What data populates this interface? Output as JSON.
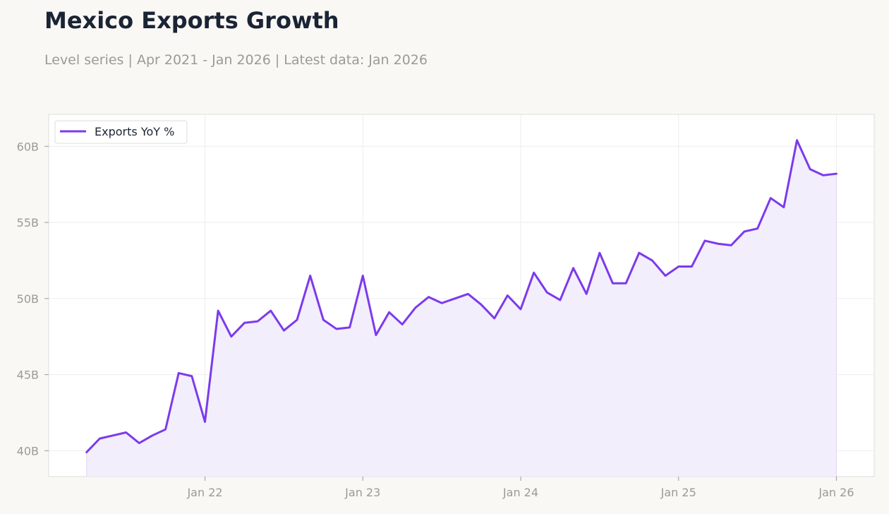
{
  "title": "Mexico Exports Growth",
  "subtitle": "Level series | Apr 2021 - Jan 2026 | Latest data: Jan 2026",
  "chart_data": {
    "type": "area",
    "title": "Mexico Exports Growth",
    "subtitle": "Level series | Apr 2021 - Jan 2026 | Latest data: Jan 2026",
    "xlabel": "",
    "ylabel": "",
    "x_start": "2021-04",
    "x_ticks": [
      "Jan 22",
      "Jan 23",
      "Jan 24",
      "Jan 25",
      "Jan 26"
    ],
    "y_ticks": [
      "40B",
      "45B",
      "50B",
      "55B",
      "60B"
    ],
    "ylim": [
      38.3,
      62.1
    ],
    "grid": true,
    "legend_position": "top-left",
    "colors": {
      "line": "#7c3aed",
      "fill": "#f1ecfb",
      "grid": "#ededed",
      "frame": "#dcdcd8"
    },
    "series": [
      {
        "name": "Exports YoY %",
        "x": [
          "2021-04",
          "2021-05",
          "2021-06",
          "2021-07",
          "2021-08",
          "2021-09",
          "2021-10",
          "2021-11",
          "2021-12",
          "2022-01",
          "2022-02",
          "2022-03",
          "2022-04",
          "2022-05",
          "2022-06",
          "2022-07",
          "2022-08",
          "2022-09",
          "2022-10",
          "2022-11",
          "2022-12",
          "2023-01",
          "2023-02",
          "2023-03",
          "2023-04",
          "2023-05",
          "2023-06",
          "2023-07",
          "2023-08",
          "2023-09",
          "2023-10",
          "2023-11",
          "2023-12",
          "2024-01",
          "2024-02",
          "2024-03",
          "2024-04",
          "2024-05",
          "2024-06",
          "2024-07",
          "2024-08",
          "2024-09",
          "2024-10",
          "2024-11",
          "2024-12",
          "2025-01",
          "2025-02",
          "2025-03",
          "2025-04",
          "2025-05",
          "2025-06",
          "2025-07",
          "2025-08",
          "2025-09",
          "2025-10",
          "2025-11",
          "2025-12",
          "2026-01"
        ],
        "values": [
          39.9,
          40.8,
          41.0,
          41.2,
          40.5,
          41.0,
          41.4,
          45.1,
          44.9,
          41.9,
          49.2,
          47.5,
          48.4,
          48.5,
          49.2,
          47.9,
          48.6,
          51.5,
          48.6,
          48.0,
          48.1,
          51.5,
          47.6,
          49.1,
          48.3,
          49.4,
          50.1,
          49.7,
          50.0,
          50.3,
          49.6,
          48.7,
          50.2,
          49.3,
          51.7,
          50.4,
          49.9,
          52.0,
          50.3,
          53.0,
          51.0,
          51.0,
          53.0,
          52.5,
          51.5,
          52.1,
          52.1,
          53.8,
          53.6,
          53.5,
          54.4,
          54.6,
          56.6,
          56.0,
          60.4,
          58.5,
          58.1,
          58.2
        ]
      }
    ]
  }
}
